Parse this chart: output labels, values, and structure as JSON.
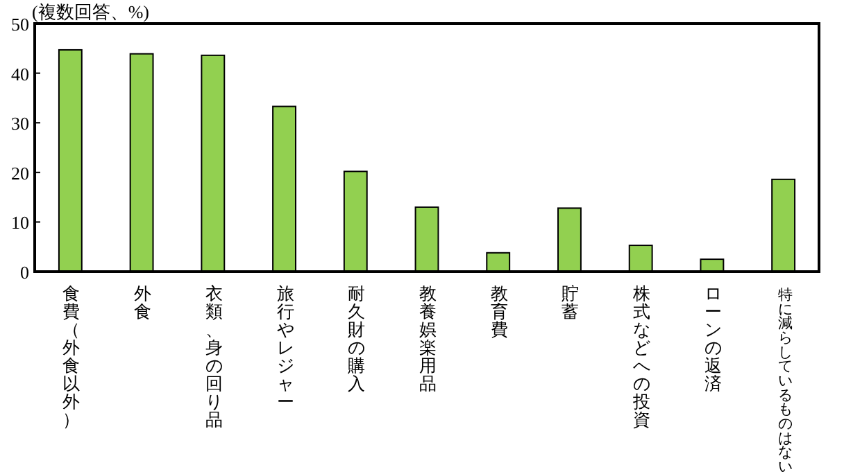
{
  "chart_data": {
    "type": "bar",
    "title": "(複数回答、%)",
    "categories": [
      "食費（外食以外）",
      "外食",
      "衣類、身の回り品",
      "旅行やレジャー",
      "耐久財の購入",
      "教養娯楽用品",
      "教育費",
      "貯蓄",
      "株式などへの投資",
      "ローンの返済",
      "特に減らしているものはない"
    ],
    "values": [
      44.7,
      43.9,
      43.6,
      33.3,
      20.2,
      13.0,
      3.8,
      12.8,
      5.3,
      2.5,
      18.6
    ],
    "color": "#92d050",
    "ylim": [
      0,
      50
    ],
    "yticks": [
      0,
      10,
      20,
      30,
      40,
      50
    ],
    "grid": false,
    "legend": false
  }
}
